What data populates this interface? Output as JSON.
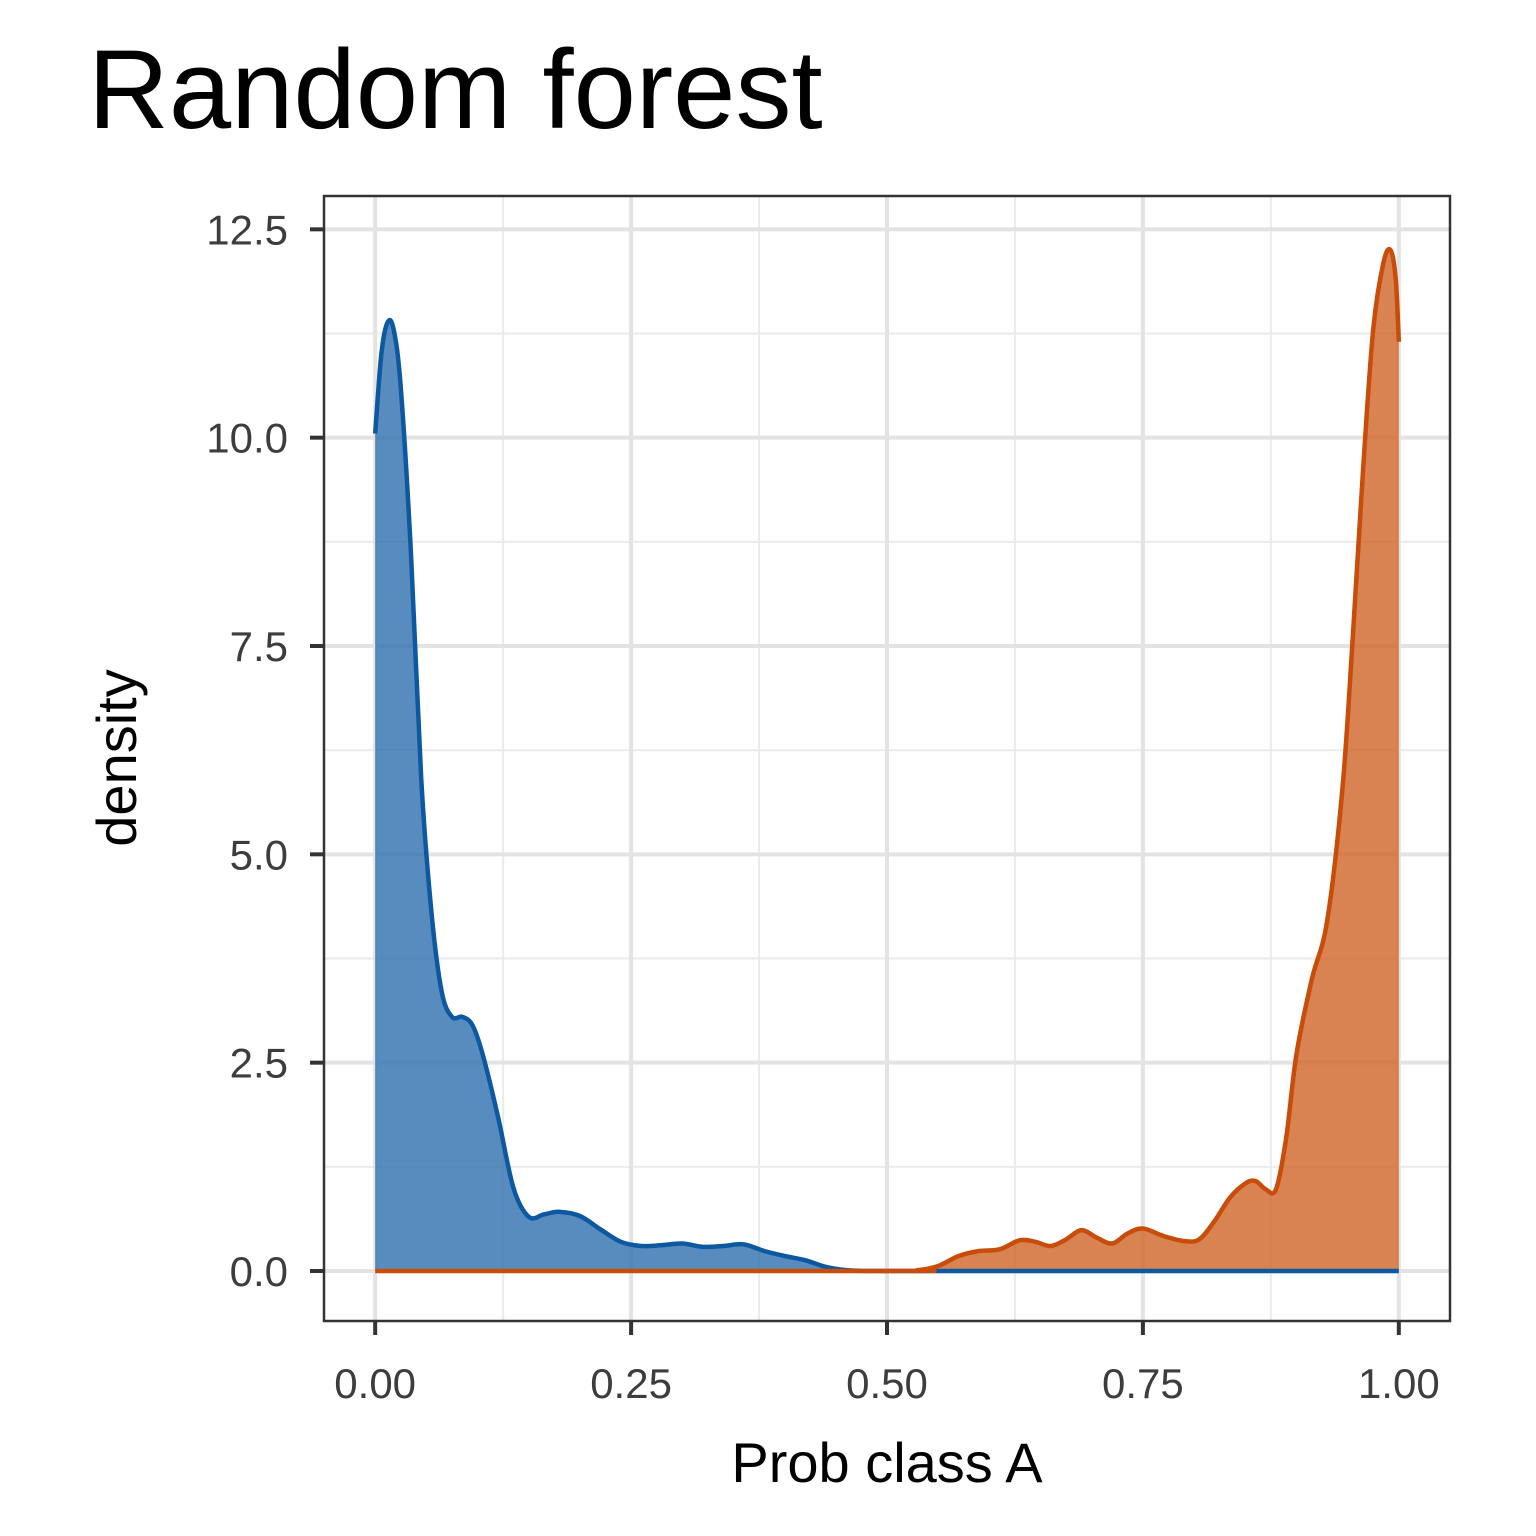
{
  "chart_data": {
    "type": "area",
    "title": "Random forest",
    "xlabel": "Prob class A",
    "ylabel": "density",
    "xlim": [
      -0.05,
      1.05
    ],
    "ylim": [
      -0.6,
      12.9
    ],
    "x_ticks": [
      0,
      0.25,
      0.5,
      0.75,
      1
    ],
    "x_tick_labels": [
      "0.00",
      "0.25",
      "0.50",
      "0.75",
      "1.00"
    ],
    "y_ticks": [
      0,
      2.5,
      5,
      7.5,
      10,
      12.5
    ],
    "y_tick_labels": [
      "0.0",
      "2.5",
      "5.0",
      "7.5",
      "10.0",
      "12.5"
    ],
    "grid": true,
    "legend": "none",
    "series": [
      {
        "color": "#0d59a1",
        "fill": "#2f6fae",
        "points": [
          [
            0.0,
            10.05
          ],
          [
            0.006,
            11.0
          ],
          [
            0.012,
            11.38
          ],
          [
            0.018,
            11.3
          ],
          [
            0.025,
            10.6
          ],
          [
            0.035,
            8.6
          ],
          [
            0.045,
            5.9
          ],
          [
            0.055,
            4.3
          ],
          [
            0.065,
            3.35
          ],
          [
            0.075,
            3.05
          ],
          [
            0.085,
            3.05
          ],
          [
            0.095,
            2.95
          ],
          [
            0.105,
            2.6
          ],
          [
            0.12,
            1.85
          ],
          [
            0.135,
            1.0
          ],
          [
            0.15,
            0.65
          ],
          [
            0.165,
            0.68
          ],
          [
            0.18,
            0.71
          ],
          [
            0.2,
            0.66
          ],
          [
            0.22,
            0.5
          ],
          [
            0.24,
            0.35
          ],
          [
            0.26,
            0.3
          ],
          [
            0.28,
            0.31
          ],
          [
            0.3,
            0.33
          ],
          [
            0.32,
            0.29
          ],
          [
            0.34,
            0.3
          ],
          [
            0.36,
            0.32
          ],
          [
            0.38,
            0.24
          ],
          [
            0.4,
            0.18
          ],
          [
            0.42,
            0.13
          ],
          [
            0.44,
            0.05
          ],
          [
            0.46,
            0.01
          ],
          [
            0.48,
            0.0
          ],
          [
            0.52,
            0.0
          ],
          [
            0.6,
            0.0
          ],
          [
            0.8,
            0.0
          ],
          [
            1.0,
            0.0
          ]
        ]
      },
      {
        "color": "#c84d0b",
        "fill": "#cf6428",
        "points": [
          [
            0.0,
            0.0
          ],
          [
            0.5,
            0.0
          ],
          [
            0.53,
            0.01
          ],
          [
            0.55,
            0.06
          ],
          [
            0.57,
            0.18
          ],
          [
            0.59,
            0.24
          ],
          [
            0.61,
            0.26
          ],
          [
            0.63,
            0.37
          ],
          [
            0.645,
            0.35
          ],
          [
            0.66,
            0.3
          ],
          [
            0.675,
            0.38
          ],
          [
            0.69,
            0.49
          ],
          [
            0.705,
            0.4
          ],
          [
            0.72,
            0.33
          ],
          [
            0.735,
            0.45
          ],
          [
            0.75,
            0.51
          ],
          [
            0.77,
            0.42
          ],
          [
            0.79,
            0.36
          ],
          [
            0.805,
            0.38
          ],
          [
            0.82,
            0.6
          ],
          [
            0.835,
            0.88
          ],
          [
            0.85,
            1.05
          ],
          [
            0.86,
            1.08
          ],
          [
            0.87,
            0.98
          ],
          [
            0.88,
            0.98
          ],
          [
            0.89,
            1.6
          ],
          [
            0.9,
            2.6
          ],
          [
            0.915,
            3.5
          ],
          [
            0.93,
            4.2
          ],
          [
            0.945,
            5.8
          ],
          [
            0.955,
            7.6
          ],
          [
            0.965,
            9.6
          ],
          [
            0.975,
            11.3
          ],
          [
            0.985,
            12.1
          ],
          [
            0.992,
            12.25
          ],
          [
            0.997,
            11.9
          ],
          [
            1.0,
            11.15
          ]
        ]
      }
    ]
  }
}
